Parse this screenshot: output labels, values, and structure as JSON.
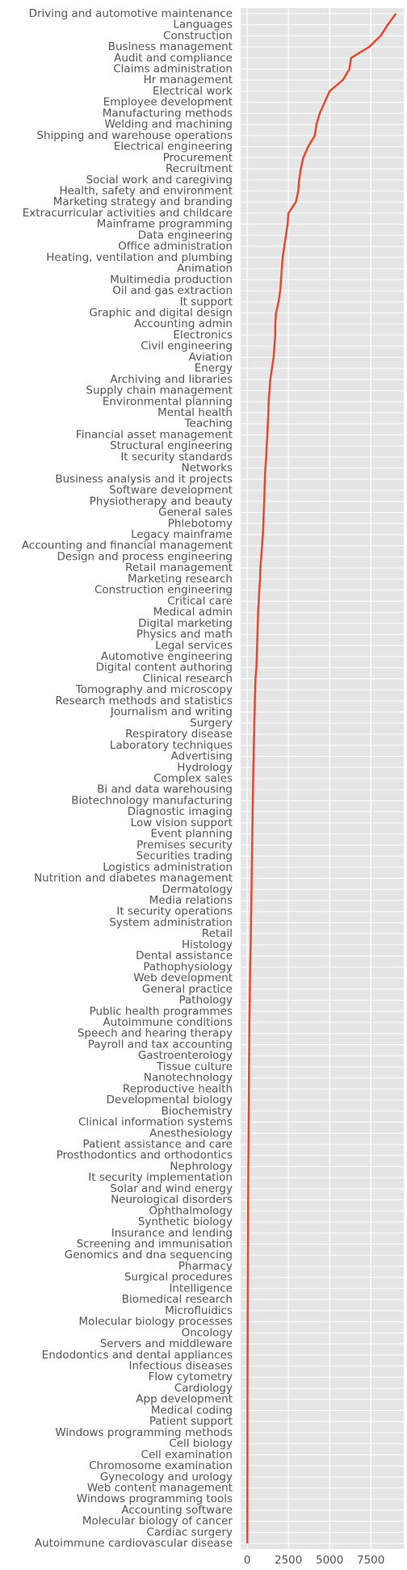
{
  "chart_data": {
    "type": "line",
    "orientation": "horizontal",
    "color": "#e24a33",
    "grid": true,
    "xlim": [
      -400,
      9500
    ],
    "xticks": [
      0,
      2500,
      5000,
      7500
    ],
    "categories": [
      "Driving and automotive maintenance",
      "Languages",
      "Construction",
      "Business management",
      "Audit and compliance",
      "Claims administration",
      "Hr management",
      "Electrical work",
      "Employee development",
      "Manufacturing methods",
      "Welding and machining",
      "Shipping and warehouse operations",
      "Electrical engineering",
      "Procurement",
      "Recruitment",
      "Social work and caregiving",
      "Health, safety and environment",
      "Marketing strategy and branding",
      "Extracurricular activities and childcare",
      "Mainframe programming",
      "Data engineering",
      "Office administration",
      "Heating, ventilation and plumbing",
      "Animation",
      "Multimedia production",
      "Oil and gas extraction",
      "It support",
      "Graphic and digital design",
      "Accounting admin",
      "Electronics",
      "Civil engineering",
      "Aviation",
      "Energy",
      "Archiving and libraries",
      "Supply chain management",
      "Environmental planning",
      "Mental health",
      "Teaching",
      "Financial asset management",
      "Structural engineering",
      "It security standards",
      "Networks",
      "Business analysis and it projects",
      "Software development",
      "Physiotherapy and beauty",
      "General sales",
      "Phlebotomy",
      "Legacy mainframe",
      "Accounting and financial management",
      "Design and process engineering",
      "Retail management",
      "Marketing research",
      "Construction engineering",
      "Critical care",
      "Medical admin",
      "Digital marketing",
      "Physics and math",
      "Legal services",
      "Automotive engineering",
      "Digital content authoring",
      "Clinical research",
      "Tomography and microscopy",
      "Research methods and statistics",
      "Journalism and writing",
      "Surgery",
      "Respiratory disease",
      "Laboratory techniques",
      "Advertising",
      "Hydrology",
      "Complex sales",
      "Bi and data warehousing",
      "Biotechnology manufacturing",
      "Diagnostic imaging",
      "Low vision support",
      "Event planning",
      "Premises security",
      "Securities trading",
      "Logistics administration",
      "Nutrition and diabetes management",
      "Dermatology",
      "Media relations",
      "It security operations",
      "System administration",
      "Retail",
      "Histology",
      "Dental assistance",
      "Pathophysiology",
      "Web development",
      "General practice",
      "Pathology",
      "Public health programmes",
      "Autoimmune conditions",
      "Speech and hearing therapy",
      "Payroll and tax accounting",
      "Gastroenterology",
      "Tissue culture",
      "Nanotechnology",
      "Reproductive health",
      "Developmental biology",
      "Biochemistry",
      "Clinical information systems",
      "Anesthesiology",
      "Patient assistance and care",
      "Prosthodontics and orthodontics",
      "Nephrology",
      "It security implementation",
      "Solar and wind energy",
      "Neurological disorders",
      "Ophthalmology",
      "Synthetic biology",
      "Insurance and lending",
      "Screening and immunisation",
      "Genomics and dna sequencing",
      "Pharmacy",
      "Surgical procedures",
      "Intelligence",
      "Biomedical research",
      "Microfluidics",
      "Molecular biology processes",
      "Oncology",
      "Servers and middleware",
      "Endodontics and dental appliances",
      "Infectious diseases",
      "Flow cytometry",
      "Cardiology",
      "App development",
      "Medical coding",
      "Patient support",
      "Windows programming methods",
      "Cell biology",
      "Cell examination",
      "Chromosome examination",
      "Gynecology and urology",
      "Web content management",
      "Windows programming tools",
      "Accounting software",
      "Molecular biology of cancer",
      "Cardiac surgery",
      "Autoimmune cardiovascular disease"
    ],
    "values": [
      9020,
      8530,
      8100,
      7400,
      6300,
      6200,
      5800,
      5000,
      4700,
      4400,
      4200,
      4100,
      3700,
      3400,
      3250,
      3150,
      3100,
      2950,
      2500,
      2450,
      2350,
      2250,
      2150,
      2100,
      2050,
      2000,
      1900,
      1750,
      1700,
      1700,
      1650,
      1600,
      1500,
      1400,
      1350,
      1300,
      1280,
      1250,
      1220,
      1180,
      1150,
      1100,
      1070,
      1050,
      1030,
      1000,
      980,
      950,
      900,
      850,
      800,
      780,
      730,
      700,
      660,
      640,
      620,
      600,
      580,
      560,
      500,
      480,
      460,
      450,
      430,
      420,
      400,
      390,
      370,
      360,
      350,
      340,
      330,
      320,
      310,
      300,
      290,
      280,
      270,
      260,
      250,
      240,
      230,
      220,
      210,
      190,
      180,
      170,
      160,
      150,
      140,
      130,
      125,
      120,
      115,
      110,
      105,
      100,
      95,
      90,
      85,
      80,
      75,
      70,
      65,
      60,
      58,
      55,
      52,
      50,
      48,
      45,
      42,
      40,
      38,
      36,
      34,
      32,
      30,
      28,
      26,
      24,
      22,
      20,
      19,
      18,
      17,
      16,
      15,
      14,
      13,
      12,
      11,
      10,
      9,
      8,
      7,
      6,
      5
    ]
  }
}
